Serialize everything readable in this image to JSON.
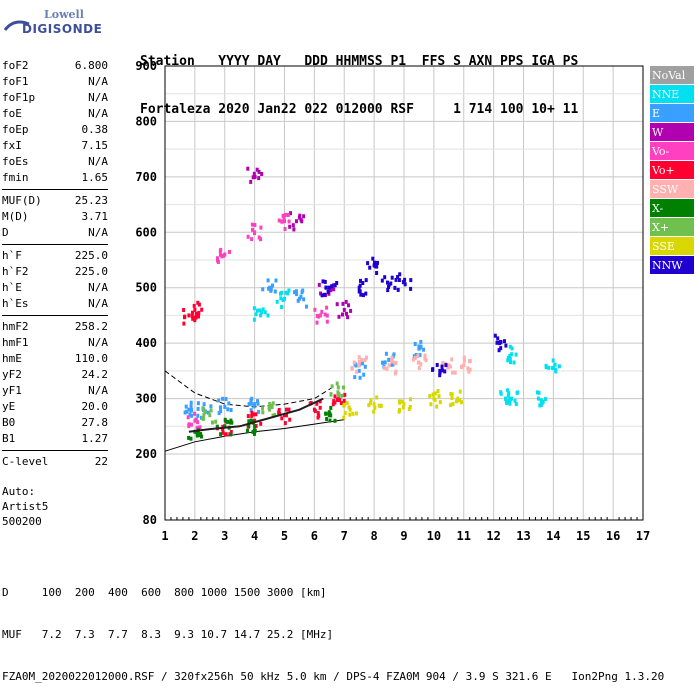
{
  "logo": {
    "brand_top": "Lowell",
    "brand_bottom": "DIGISONDE"
  },
  "header": {
    "line1": "Station   YYYY DAY   DDD HHMMSS P1  FFS S AXN PPS IGA PS",
    "line2": "Fortaleza 2020 Jan22 022 012000 RSF     1 714 100 10+ 11"
  },
  "params_group1": [
    {
      "label": "foF2",
      "value": "6.800"
    },
    {
      "label": "foF1",
      "value": "N/A"
    },
    {
      "label": "foF1p",
      "value": "N/A"
    },
    {
      "label": "foE",
      "value": "N/A"
    },
    {
      "label": "foEp",
      "value": "0.38"
    },
    {
      "label": "fxI",
      "value": "7.15"
    },
    {
      "label": "foEs",
      "value": "N/A"
    },
    {
      "label": "fmin",
      "value": "1.65"
    }
  ],
  "params_group2": [
    {
      "label": "MUF(D)",
      "value": "25.23"
    },
    {
      "label": "M(D)",
      "value": "3.71"
    },
    {
      "label": "D",
      "value": "N/A"
    }
  ],
  "params_group3": [
    {
      "label": "h`F",
      "value": "225.0"
    },
    {
      "label": "h`F2",
      "value": "225.0"
    },
    {
      "label": "h`E",
      "value": "N/A"
    },
    {
      "label": "h`Es",
      "value": "N/A"
    }
  ],
  "params_group4": [
    {
      "label": "hmF2",
      "value": "258.2"
    },
    {
      "label": "hmF1",
      "value": "N/A"
    },
    {
      "label": "hmE",
      "value": "110.0"
    },
    {
      "label": "yF2",
      "value": "24.2"
    },
    {
      "label": "yF1",
      "value": "N/A"
    },
    {
      "label": "yE",
      "value": "20.0"
    },
    {
      "label": "B0",
      "value": "27.8"
    },
    {
      "label": "B1",
      "value": "1.27"
    }
  ],
  "params_group5": [
    {
      "label": "C-level",
      "value": "22"
    }
  ],
  "auto": {
    "line1": "Auto:",
    "line2": "Artist5",
    "line3": "500200"
  },
  "legend": [
    {
      "label": "NoVal",
      "color": "#a0a0a0"
    },
    {
      "label": "NNE",
      "color": "#00e0f0"
    },
    {
      "label": "E",
      "color": "#3aa0ff"
    },
    {
      "label": "W",
      "color": "#b000b0"
    },
    {
      "label": "Vo-",
      "color": "#ff40c0"
    },
    {
      "label": "Vo+",
      "color": "#ff0030"
    },
    {
      "label": "SSW",
      "color": "#ffb0b0"
    },
    {
      "label": "X-",
      "color": "#008000"
    },
    {
      "label": "X+",
      "color": "#70c050"
    },
    {
      "label": "SSE",
      "color": "#d8d800"
    },
    {
      "label": "NNW",
      "color": "#2000d0"
    }
  ],
  "footer": {
    "line1": "D     100  200  400  600  800 1000 1500 3000 [km]",
    "line2": "MUF   7.2  7.3  7.7  8.3  9.3 10.7 14.7 25.2 [MHz]",
    "line3": "FZA0M_2020022012000.RSF / 320fx256h 50 kHz 5.0 km / DPS-4 FZA0M 904 / 3.9 S 321.6 E   Ion2Png 1.3.20"
  },
  "chart_data": {
    "type": "scatter",
    "xlim": [
      1,
      17
    ],
    "ylim": [
      80,
      900
    ],
    "x_ticks": [
      "1",
      "2",
      "3",
      "4",
      "5",
      "6",
      "7",
      "8",
      "9",
      "10",
      "11",
      "12",
      "13",
      "14",
      "15",
      "16",
      "17"
    ],
    "y_ticks": [
      "900",
      "800",
      "700",
      "600",
      "500",
      "400",
      "300",
      "200",
      "80"
    ],
    "y_tick_values": [
      900,
      800,
      700,
      600,
      500,
      400,
      300,
      200,
      80
    ],
    "grid": true,
    "series": [
      {
        "name": "NNE",
        "color": "#00e0f0",
        "points": [
          [
            12.4,
            300
          ],
          [
            12.6,
            300
          ],
          [
            13.5,
            300
          ],
          [
            12.6,
            380
          ],
          [
            14.0,
            355
          ],
          [
            4.2,
            450
          ],
          [
            5.0,
            480
          ]
        ]
      },
      {
        "name": "E",
        "color": "#3aa0ff",
        "points": [
          [
            1.8,
            280
          ],
          [
            2.3,
            280
          ],
          [
            3.0,
            285
          ],
          [
            4.0,
            290
          ],
          [
            4.5,
            500
          ],
          [
            5.5,
            480
          ],
          [
            7.5,
            350
          ],
          [
            8.5,
            370
          ],
          [
            9.5,
            390
          ]
        ]
      },
      {
        "name": "W",
        "color": "#b000b0",
        "points": [
          [
            4.0,
            700
          ],
          [
            5.4,
            620
          ],
          [
            6.4,
            500
          ],
          [
            7.0,
            460
          ]
        ]
      },
      {
        "name": "Vo-",
        "color": "#ff40c0",
        "points": [
          [
            2.0,
            260
          ],
          [
            3.0,
            560
          ],
          [
            4.0,
            600
          ],
          [
            5.0,
            620
          ],
          [
            6.2,
            450
          ]
        ]
      },
      {
        "name": "Vo+",
        "color": "#ff0030",
        "points": [
          [
            1.8,
            450
          ],
          [
            2.0,
            460
          ],
          [
            3.0,
            250
          ],
          [
            4.0,
            260
          ],
          [
            5.0,
            270
          ],
          [
            6.0,
            280
          ],
          [
            6.8,
            300
          ]
        ]
      },
      {
        "name": "SSW",
        "color": "#ffb0b0",
        "points": [
          [
            7.5,
            360
          ],
          [
            8.5,
            360
          ],
          [
            9.5,
            365
          ],
          [
            10.5,
            360
          ],
          [
            11.0,
            360
          ]
        ]
      },
      {
        "name": "X-",
        "color": "#008000",
        "points": [
          [
            2.0,
            240
          ],
          [
            3.0,
            250
          ],
          [
            4.0,
            250
          ],
          [
            6.5,
            270
          ]
        ]
      },
      {
        "name": "X+",
        "color": "#70c050",
        "points": [
          [
            2.5,
            270
          ],
          [
            4.5,
            280
          ],
          [
            6.8,
            320
          ]
        ]
      },
      {
        "name": "SSE",
        "color": "#d8d800",
        "points": [
          [
            7.2,
            280
          ],
          [
            8.0,
            290
          ],
          [
            9.0,
            290
          ],
          [
            10.0,
            300
          ],
          [
            10.8,
            300
          ]
        ]
      },
      {
        "name": "NNW",
        "color": "#2000d0",
        "points": [
          [
            6.5,
            500
          ],
          [
            7.5,
            500
          ],
          [
            8.5,
            505
          ],
          [
            9.0,
            510
          ],
          [
            8.0,
            540
          ],
          [
            10.2,
            350
          ],
          [
            12.2,
            400
          ]
        ]
      }
    ],
    "trace_dashed": [
      [
        1.0,
        350
      ],
      [
        2.0,
        310
      ],
      [
        3.0,
        290
      ],
      [
        4.0,
        285
      ],
      [
        5.0,
        290
      ],
      [
        6.0,
        300
      ],
      [
        6.6,
        320
      ]
    ],
    "trace_solid": [
      [
        1.0,
        205
      ],
      [
        2.0,
        222
      ],
      [
        3.0,
        232
      ],
      [
        4.0,
        240
      ],
      [
        5.0,
        246
      ],
      [
        6.0,
        254
      ],
      [
        7.0,
        262
      ]
    ],
    "trace_dark": [
      [
        1.8,
        240
      ],
      [
        2.5,
        245
      ],
      [
        3.5,
        250
      ],
      [
        4.5,
        265
      ],
      [
        5.5,
        280
      ],
      [
        6.3,
        300
      ]
    ]
  }
}
